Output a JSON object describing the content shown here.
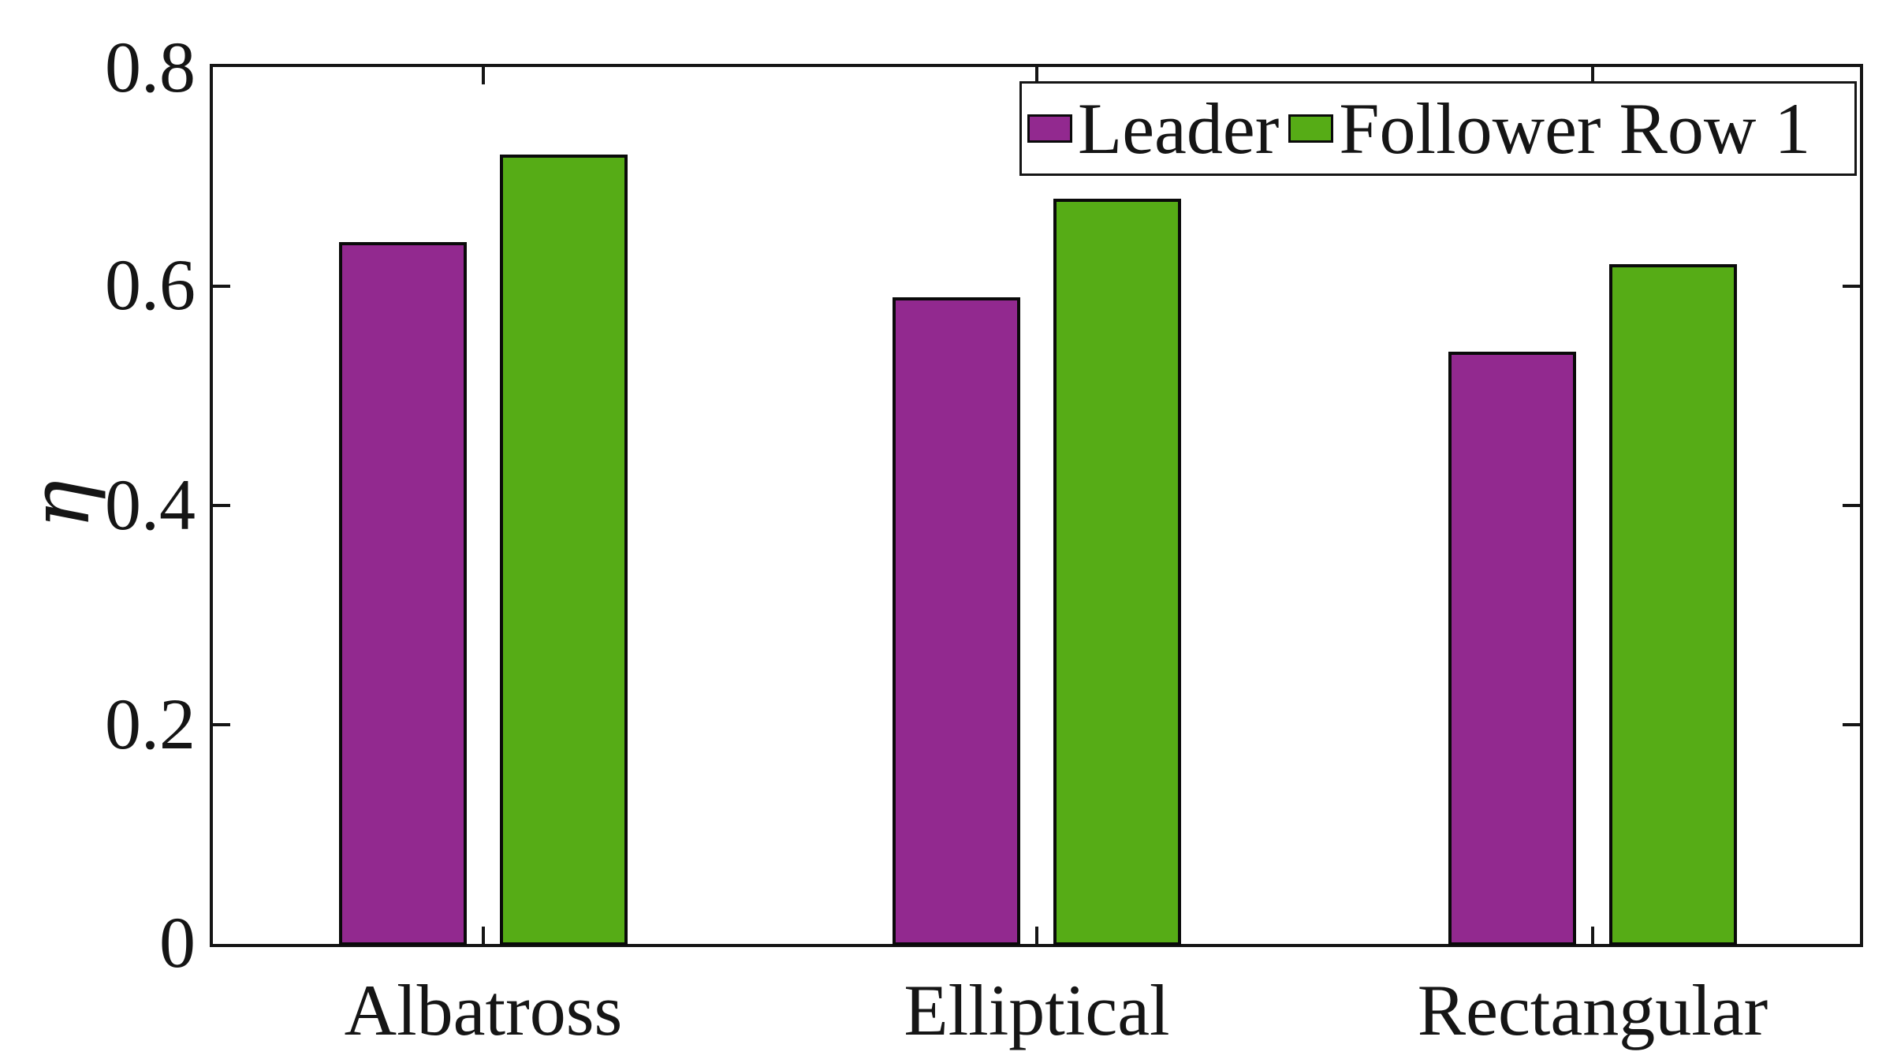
{
  "chart_data": {
    "type": "bar",
    "title": "",
    "categories": [
      "Albatross",
      "Elliptical",
      "Rectangular"
    ],
    "series": [
      {
        "name": "Leader",
        "color": "#92298F",
        "values": [
          0.64,
          0.59,
          0.54
        ]
      },
      {
        "name": "Follower Row 1",
        "color": "#56AC16",
        "values": [
          0.72,
          0.68,
          0.62
        ]
      }
    ],
    "xlabel": "",
    "ylabel": "η",
    "ylim": [
      0,
      0.8
    ],
    "yticks": [
      0,
      0.2,
      0.4,
      0.6,
      0.8
    ],
    "ytick_labels": [
      "0",
      "0.2",
      "0.4",
      "0.6",
      "0.8"
    ],
    "grid": false,
    "legend_position": "top-right",
    "axis_color": "#151515",
    "background_color": "#ffffff"
  }
}
